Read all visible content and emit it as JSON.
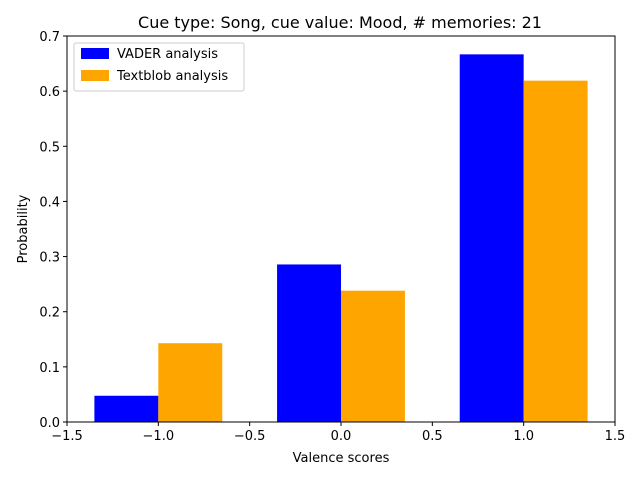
{
  "chart_data": {
    "type": "bar",
    "title": "Cue type: Song, cue value: Mood, # memories: 21",
    "xlabel": "Valence scores",
    "ylabel": "Probability",
    "xlim": [
      -1.5,
      1.5
    ],
    "ylim": [
      0,
      0.7
    ],
    "xticks": [
      -1.5,
      -1.0,
      -0.5,
      0.0,
      0.5,
      1.0,
      1.5
    ],
    "xtick_labels": [
      "−1.5",
      "−1.0",
      "−0.5",
      "0.0",
      "0.5",
      "1.0",
      "1.5"
    ],
    "yticks": [
      0.0,
      0.1,
      0.2,
      0.3,
      0.4,
      0.5,
      0.6,
      0.7
    ],
    "ytick_labels": [
      "0.0",
      "0.1",
      "0.2",
      "0.3",
      "0.4",
      "0.5",
      "0.6",
      "0.7"
    ],
    "bar_width": 0.35,
    "grid": false,
    "legend_position": "upper-left",
    "series": [
      {
        "name": "VADER analysis",
        "color": "#0000ff",
        "x": [
          -1,
          0,
          1
        ],
        "values": [
          0.0476,
          0.2857,
          0.6667
        ],
        "align": "left"
      },
      {
        "name": "Textblob analysis",
        "color": "#ffa500",
        "x": [
          -1,
          0,
          1
        ],
        "values": [
          0.1429,
          0.2381,
          0.619
        ],
        "align": "right"
      }
    ]
  }
}
